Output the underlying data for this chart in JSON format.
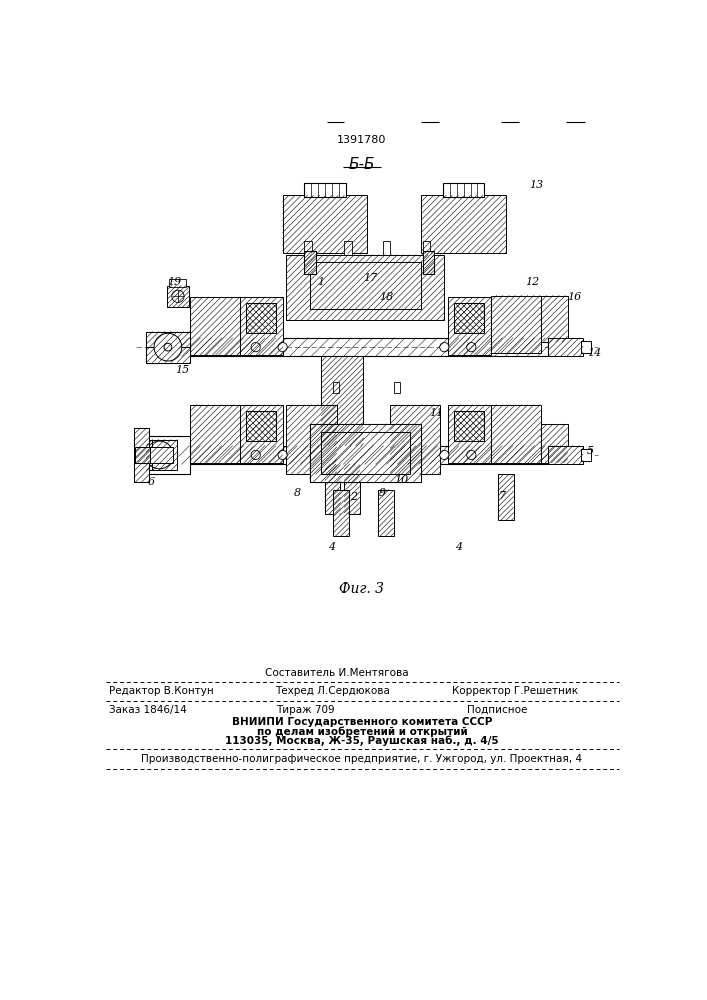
{
  "patent_number": "1391780",
  "section_label": "Б-Б",
  "fig_label": "Фиг. 3",
  "bg_color": "#ffffff",
  "line_color": "#000000",
  "footer": {
    "editor_label": "Редактор В.Контун",
    "compositor_label": "Составитель И.Ментягова",
    "techred_label": "Техред Л.Сердюкова",
    "corrector_label": "Корректор Г.Решетник",
    "order_label": "Заказ 1846/14",
    "tirazh_label": "Тираж 709",
    "podpisnoe_label": "Подписное",
    "vniip1": "ВНИИПИ Государственного комитета СССР",
    "vniip2": "по делам изобретений и открытий",
    "vniip3": "113035, Москва, Ж-35, Раушская наб., д. 4/5",
    "production": "Производственно-полиграфическое предприятие, г. Ужгород, ул. Проектная, 4"
  }
}
